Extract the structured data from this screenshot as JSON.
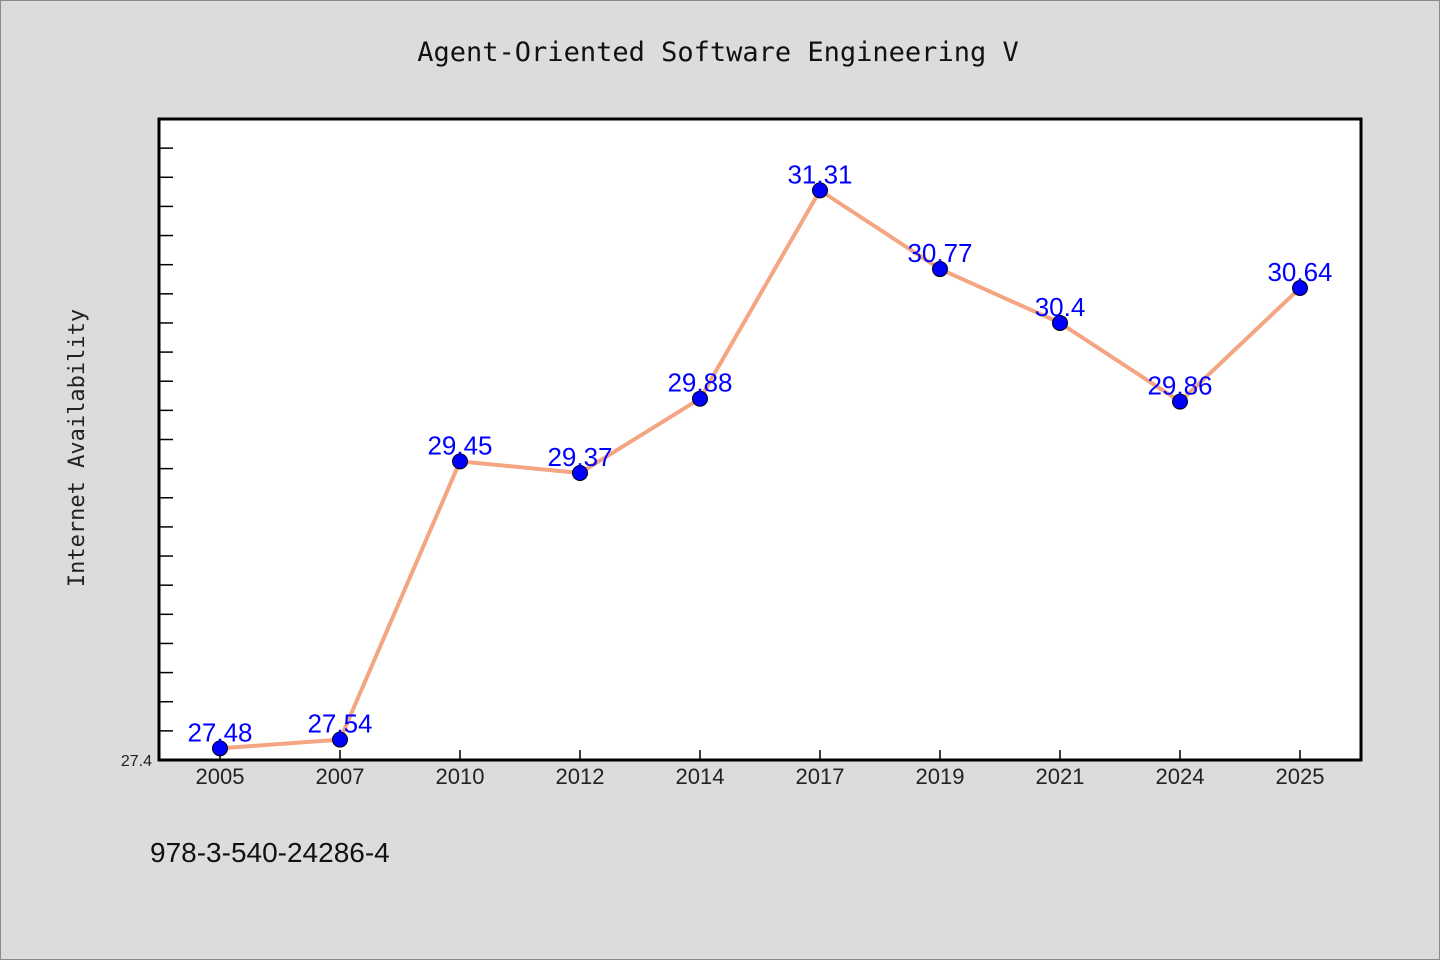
{
  "chart_data": {
    "type": "line",
    "title": "Agent-Oriented Software Engineering V",
    "xlabel": "",
    "ylabel": "Internet Availability",
    "categories": [
      "2005",
      "2007",
      "2010",
      "2012",
      "2014",
      "2017",
      "2019",
      "2021",
      "2024",
      "2025"
    ],
    "series": [
      {
        "values": [
          27.48,
          27.54,
          29.45,
          29.37,
          29.88,
          31.31,
          30.77,
          30.4,
          29.86,
          30.64
        ]
      }
    ],
    "ylim": [
      27.4,
      31.8
    ],
    "y_ticks": [
      "27.4"
    ],
    "grid": false,
    "line_color": "#f4a582",
    "marker_color": "#0000ff",
    "label_color": "#0000ff"
  },
  "footer": "978-3-540-24286-4"
}
